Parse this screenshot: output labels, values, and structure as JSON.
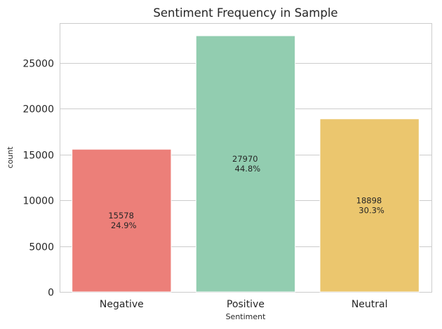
{
  "chart_data": {
    "type": "bar",
    "title": "Sentiment Frequency in Sample",
    "xlabel": "Sentiment",
    "ylabel": "count",
    "categories": [
      "Negative",
      "Positive",
      "Neutral"
    ],
    "values": [
      15578,
      27970,
      18898
    ],
    "percent_labels": [
      "24.9%",
      "44.8%",
      "30.3%"
    ],
    "colors": [
      "#ec7f79",
      "#92cdb0",
      "#ebc66e"
    ],
    "ylim": [
      0,
      29350
    ],
    "yticks": [
      0,
      5000,
      10000,
      15000,
      20000,
      25000
    ],
    "grid": true,
    "legend": "none"
  }
}
